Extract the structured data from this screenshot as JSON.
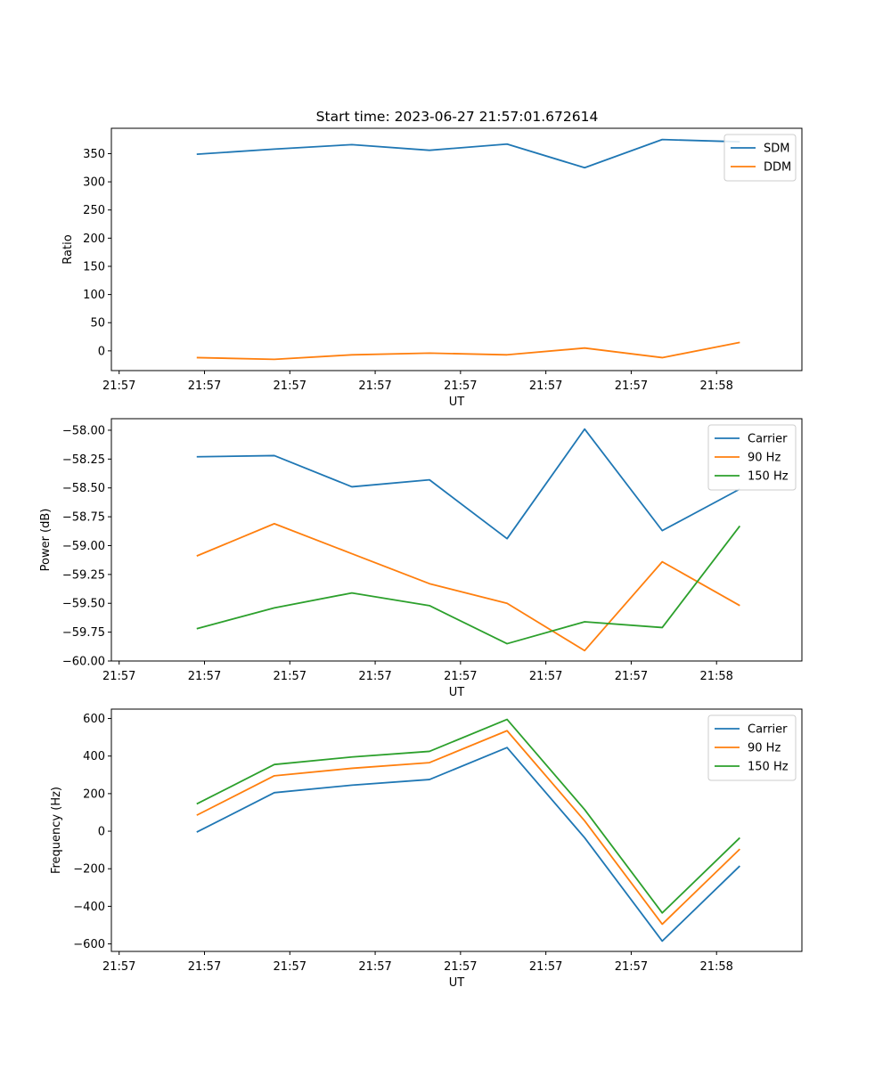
{
  "figure": {
    "title": "Start time: 2023-06-27 21:57:01.672614"
  },
  "chart_data": [
    {
      "type": "line",
      "xlabel": "UT",
      "ylabel": "Ratio",
      "x_tick_labels": [
        "21:57",
        "21:57",
        "21:57",
        "21:57",
        "21:57",
        "21:57",
        "21:57",
        "21:58"
      ],
      "xlim": [
        -0.6,
        8.3
      ],
      "ylim": [
        -35,
        395
      ],
      "y_ticks": [
        0,
        50,
        100,
        150,
        200,
        250,
        300,
        350
      ],
      "y_tick_labels": [
        "0",
        "50",
        "100",
        "150",
        "200",
        "250",
        "300",
        "350"
      ],
      "legend": "top-right",
      "grid": false,
      "x": [
        0.5,
        1.5,
        2.5,
        3.5,
        4.5,
        5.5,
        6.5,
        7.5
      ],
      "series": [
        {
          "name": "SDM",
          "color": "#1f77b4",
          "values": [
            349,
            358,
            366,
            356,
            367,
            325,
            375,
            371
          ]
        },
        {
          "name": "DDM",
          "color": "#ff7f0e",
          "values": [
            -12,
            -15,
            -7,
            -4,
            -7,
            5,
            -12,
            15
          ]
        }
      ]
    },
    {
      "type": "line",
      "xlabel": "UT",
      "ylabel": "Power (dB)",
      "x_tick_labels": [
        "21:57",
        "21:57",
        "21:57",
        "21:57",
        "21:57",
        "21:57",
        "21:57",
        "21:58"
      ],
      "xlim": [
        -0.6,
        8.3
      ],
      "ylim": [
        -60.0,
        -57.9
      ],
      "y_ticks": [
        -60.0,
        -59.75,
        -59.5,
        -59.25,
        -59.0,
        -58.75,
        -58.5,
        -58.25,
        -58.0
      ],
      "y_tick_labels": [
        "−60.00",
        "−59.75",
        "−59.50",
        "−59.25",
        "−59.00",
        "−58.75",
        "−58.50",
        "−58.25",
        "−58.00"
      ],
      "legend": "top-right",
      "grid": false,
      "x": [
        0.5,
        1.5,
        2.5,
        3.5,
        4.5,
        5.5,
        6.5,
        7.5
      ],
      "series": [
        {
          "name": "Carrier",
          "color": "#1f77b4",
          "values": [
            -58.23,
            -58.22,
            -58.49,
            -58.43,
            -58.94,
            -57.99,
            -58.87,
            -58.51
          ]
        },
        {
          "name": "90 Hz",
          "color": "#ff7f0e",
          "values": [
            -59.09,
            -58.81,
            -59.07,
            -59.33,
            -59.5,
            -59.91,
            -59.14,
            -59.52
          ]
        },
        {
          "name": "150 Hz",
          "color": "#2ca02c",
          "values": [
            -59.72,
            -59.54,
            -59.41,
            -59.52,
            -59.85,
            -59.66,
            -59.71,
            -58.83
          ]
        }
      ]
    },
    {
      "type": "line",
      "xlabel": "UT",
      "ylabel": "Frequency (Hz)",
      "x_tick_labels": [
        "21:57",
        "21:57",
        "21:57",
        "21:57",
        "21:57",
        "21:57",
        "21:57",
        "21:58"
      ],
      "xlim": [
        -0.6,
        8.3
      ],
      "ylim": [
        -640,
        650
      ],
      "y_ticks": [
        -600,
        -400,
        -200,
        0,
        200,
        400,
        600
      ],
      "y_tick_labels": [
        "−600",
        "−400",
        "−200",
        "0",
        "200",
        "400",
        "600"
      ],
      "legend": "top-right",
      "grid": false,
      "x": [
        0.5,
        1.5,
        2.5,
        3.5,
        4.5,
        5.5,
        6.5,
        7.5
      ],
      "series": [
        {
          "name": "Carrier",
          "color": "#1f77b4",
          "values": [
            -5,
            205,
            245,
            275,
            445,
            -35,
            -585,
            -185
          ]
        },
        {
          "name": "90 Hz",
          "color": "#ff7f0e",
          "values": [
            85,
            295,
            335,
            365,
            535,
            55,
            -495,
            -95
          ]
        },
        {
          "name": "150 Hz",
          "color": "#2ca02c",
          "values": [
            145,
            355,
            395,
            425,
            595,
            115,
            -435,
            -35
          ]
        }
      ]
    }
  ]
}
